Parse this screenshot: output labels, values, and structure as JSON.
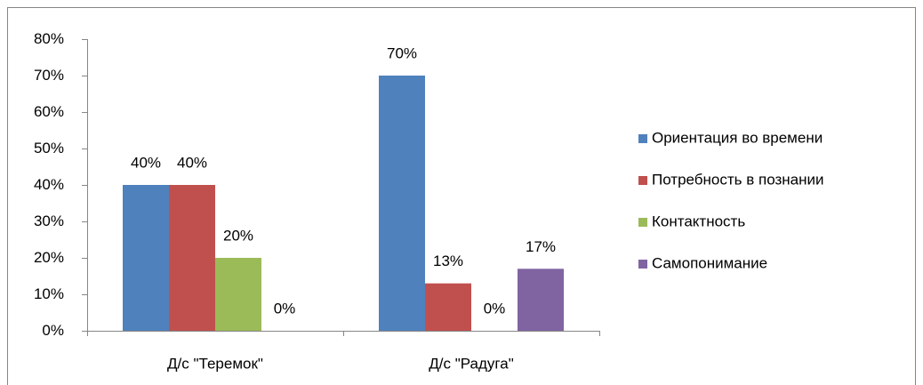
{
  "chart_data": {
    "type": "bar",
    "categories": [
      "Д/с \"Теремок\"",
      "Д/с \"Радуга\""
    ],
    "series": [
      {
        "name": "Ориентация во времени",
        "color": "#4f81bd",
        "values": [
          40,
          70
        ],
        "value_labels": [
          "40%",
          "70%"
        ]
      },
      {
        "name": "Потребность в познании",
        "color": "#c0504d",
        "values": [
          40,
          13
        ],
        "value_labels": [
          "40%",
          "13%"
        ]
      },
      {
        "name": "Контактность",
        "color": "#9bbb59",
        "values": [
          20,
          0
        ],
        "value_labels": [
          "20%",
          "0%"
        ]
      },
      {
        "name": "Самопонимание",
        "color": "#8064a2",
        "values": [
          0,
          17
        ],
        "value_labels": [
          "0%",
          "17%"
        ]
      }
    ],
    "ylim": [
      0,
      80
    ],
    "yticks": [
      {
        "value": 0,
        "label": "0%"
      },
      {
        "value": 10,
        "label": "10%"
      },
      {
        "value": 20,
        "label": "20%"
      },
      {
        "value": 30,
        "label": "30%"
      },
      {
        "value": 40,
        "label": "40%"
      },
      {
        "value": 50,
        "label": "50%"
      },
      {
        "value": 60,
        "label": "60%"
      },
      {
        "value": 70,
        "label": "70%"
      },
      {
        "value": 80,
        "label": "80%"
      }
    ],
    "grid": false,
    "legend": "right"
  }
}
